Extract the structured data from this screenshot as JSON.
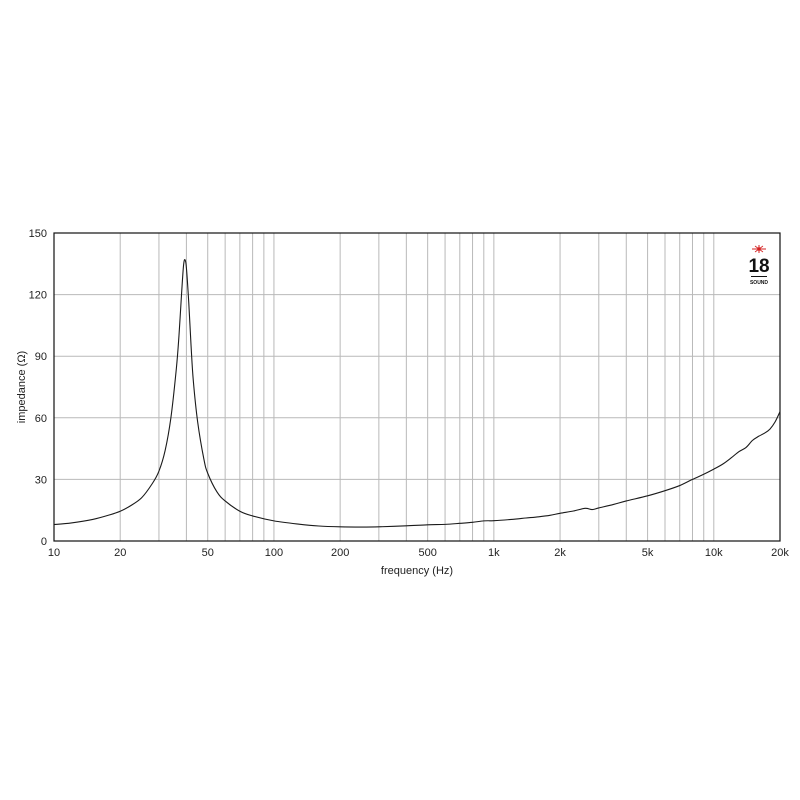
{
  "chart_data": {
    "type": "line",
    "title": "",
    "xlabel": "frequency (Hz)",
    "ylabel": "impedance (Ω)",
    "x_scale": "log",
    "xlim": [
      10,
      20000
    ],
    "ylim": [
      0,
      150
    ],
    "grid": true,
    "x_ticks": [
      {
        "value": 10,
        "label": "10"
      },
      {
        "value": 20,
        "label": "20"
      },
      {
        "value": 50,
        "label": "50"
      },
      {
        "value": 100,
        "label": "100"
      },
      {
        "value": 200,
        "label": "200"
      },
      {
        "value": 500,
        "label": "500"
      },
      {
        "value": 1000,
        "label": "1k"
      },
      {
        "value": 2000,
        "label": "2k"
      },
      {
        "value": 5000,
        "label": "5k"
      },
      {
        "value": 10000,
        "label": "10k"
      },
      {
        "value": 20000,
        "label": "20k"
      }
    ],
    "y_ticks": [
      {
        "value": 0,
        "label": "0"
      },
      {
        "value": 30,
        "label": "30"
      },
      {
        "value": 60,
        "label": "60"
      },
      {
        "value": 90,
        "label": "90"
      },
      {
        "value": 120,
        "label": "120"
      },
      {
        "value": 150,
        "label": "150"
      }
    ],
    "series": [
      {
        "color": "#1a1a1a",
        "points": [
          [
            10,
            8.0
          ],
          [
            12,
            8.8
          ],
          [
            15,
            10.5
          ],
          [
            18,
            12.8
          ],
          [
            20,
            14.5
          ],
          [
            22,
            16.8
          ],
          [
            25,
            21.0
          ],
          [
            28,
            28.0
          ],
          [
            30,
            34.0
          ],
          [
            32,
            44.0
          ],
          [
            34,
            60.0
          ],
          [
            36,
            84.0
          ],
          [
            37,
            100.0
          ],
          [
            38,
            120.0
          ],
          [
            38.8,
            134.0
          ],
          [
            39.4,
            137.0
          ],
          [
            40,
            133.0
          ],
          [
            41,
            116.0
          ],
          [
            42,
            95.0
          ],
          [
            43,
            78.0
          ],
          [
            45,
            58.0
          ],
          [
            48,
            40.0
          ],
          [
            50,
            33.0
          ],
          [
            55,
            24.0
          ],
          [
            60,
            19.5
          ],
          [
            70,
            14.5
          ],
          [
            80,
            12.2
          ],
          [
            100,
            9.8
          ],
          [
            130,
            8.2
          ],
          [
            160,
            7.3
          ],
          [
            200,
            6.9
          ],
          [
            250,
            6.8
          ],
          [
            300,
            6.9
          ],
          [
            400,
            7.4
          ],
          [
            500,
            7.9
          ],
          [
            600,
            8.1
          ],
          [
            700,
            8.6
          ],
          [
            800,
            9.1
          ],
          [
            900,
            9.8
          ],
          [
            1000,
            9.9
          ],
          [
            1200,
            10.5
          ],
          [
            1400,
            11.2
          ],
          [
            1600,
            11.8
          ],
          [
            1800,
            12.5
          ],
          [
            2000,
            13.5
          ],
          [
            2300,
            14.6
          ],
          [
            2600,
            15.9
          ],
          [
            2800,
            15.3
          ],
          [
            3000,
            16.1
          ],
          [
            3500,
            17.8
          ],
          [
            4000,
            19.5
          ],
          [
            5000,
            22.0
          ],
          [
            6000,
            24.5
          ],
          [
            7000,
            27.0
          ],
          [
            8000,
            30.0
          ],
          [
            9000,
            32.5
          ],
          [
            10000,
            35.0
          ],
          [
            11000,
            37.5
          ],
          [
            12000,
            40.5
          ],
          [
            13000,
            43.5
          ],
          [
            14000,
            45.5
          ],
          [
            15000,
            49.0
          ],
          [
            16000,
            51.0
          ],
          [
            17000,
            52.5
          ],
          [
            18000,
            54.5
          ],
          [
            19000,
            58.0
          ],
          [
            20000,
            63.0
          ]
        ]
      }
    ]
  },
  "logo": {
    "mark": "star-icon",
    "number": "18",
    "small_text": "SOUND",
    "accent_color": "#d42020"
  }
}
